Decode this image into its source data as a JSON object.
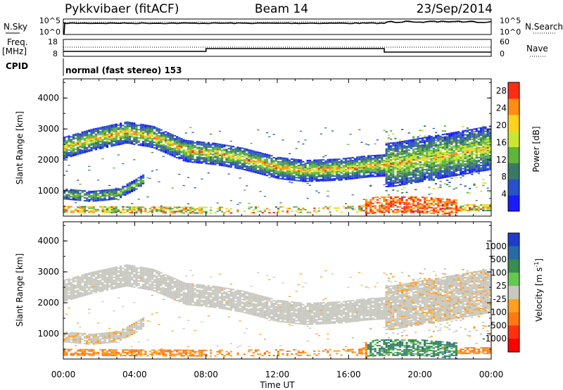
{
  "header": {
    "station": "Pykkvibaer (fitACF)",
    "beam": "Beam 14",
    "date": "23/Sep/2014"
  },
  "top_panels": {
    "nsky_label": "N.Sky",
    "nsky_ticks": [
      "10^5",
      "10^0"
    ],
    "nsearch_label": "N.Search",
    "nsearch_ticks": [
      "10^5",
      "10^0"
    ],
    "freq_label_1": "Freq.",
    "freq_label_2": "[MHz]",
    "freq_ticks": [
      "18",
      "8"
    ],
    "nave_label": "Nave",
    "nave_ticks": [
      "60",
      "0"
    ],
    "cpid_label": "CPID",
    "cpid_text": "normal (fast stereo) 153"
  },
  "chart_data": [
    {
      "type": "heatmap",
      "panel": "power",
      "ylabel": "Slant Range [km]",
      "ylim": [
        180,
        4620
      ],
      "yticks": [
        "1000",
        "2000",
        "3000",
        "4000"
      ],
      "xlabel": "Time UT",
      "xticks": [
        "00:00",
        "04:00",
        "08:00",
        "12:00",
        "16:00",
        "20:00",
        "00:00"
      ],
      "colorbar": {
        "label": "Power [dB]",
        "ticks": [
          "4",
          "8",
          "12",
          "16",
          "20",
          "24",
          "28"
        ],
        "range": [
          0,
          30
        ],
        "colors": [
          "#1a1aff",
          "#2850c8",
          "#3a7a64",
          "#5fb43c",
          "#c8e632",
          "#ffd21e",
          "#ff8c14",
          "#ff2d14"
        ]
      },
      "echo_bands": [
        {
          "name": "upper-band",
          "points": [
            [
              0.0,
              2400
            ],
            [
              1.5,
              2650
            ],
            [
              3.5,
              2900
            ],
            [
              5.0,
              2750
            ],
            [
              6.8,
              2300
            ],
            [
              8.5,
              2200
            ],
            [
              10.0,
              2050
            ],
            [
              12.0,
              1750
            ],
            [
              13.5,
              1650
            ],
            [
              15.5,
              1700
            ],
            [
              17.0,
              1800
            ],
            [
              18.5,
              1850
            ],
            [
              20.0,
              2000
            ],
            [
              22.0,
              2200
            ],
            [
              24.0,
              2400
            ]
          ],
          "power": 18
        },
        {
          "name": "lower-band",
          "points": [
            [
              0.0,
              900
            ],
            [
              1.5,
              820
            ],
            [
              3.0,
              900
            ],
            [
              4.0,
              1200
            ],
            [
              4.4,
              1350
            ]
          ],
          "power": 14
        },
        {
          "name": "near-range",
          "points": [
            [
              0.0,
              400
            ],
            [
              4.0,
              380
            ],
            [
              8.0,
              370
            ],
            [
              16.5,
              400
            ],
            [
              17.5,
              550
            ],
            [
              20.0,
              550
            ],
            [
              22.0,
              450
            ],
            [
              24.0,
              450
            ]
          ],
          "power": 26
        }
      ]
    },
    {
      "type": "heatmap",
      "panel": "velocity",
      "ylabel": "Slant Range [km]",
      "ylim": [
        180,
        4620
      ],
      "yticks": [
        "1000",
        "2000",
        "3000",
        "4000"
      ],
      "xlabel": "Time UT",
      "xticks": [
        "00:00",
        "04:00",
        "08:00",
        "12:00",
        "16:00",
        "20:00",
        "00:00"
      ],
      "colorbar": {
        "label": "Velocity [m s-1]",
        "unit_base": "Velocity [m s",
        "unit_exp": "-1",
        "unit_close": "]",
        "ticks": [
          "1000",
          "500",
          "100",
          "25",
          "-25",
          "-100",
          "-500",
          "-1000"
        ],
        "colors": [
          "#1e3ccc",
          "#2a6aa4",
          "#3a8c50",
          "#64c850",
          "#c8c8c0",
          "#ffa022",
          "#ff7814",
          "#ff3210",
          "#ff0000"
        ]
      }
    }
  ]
}
